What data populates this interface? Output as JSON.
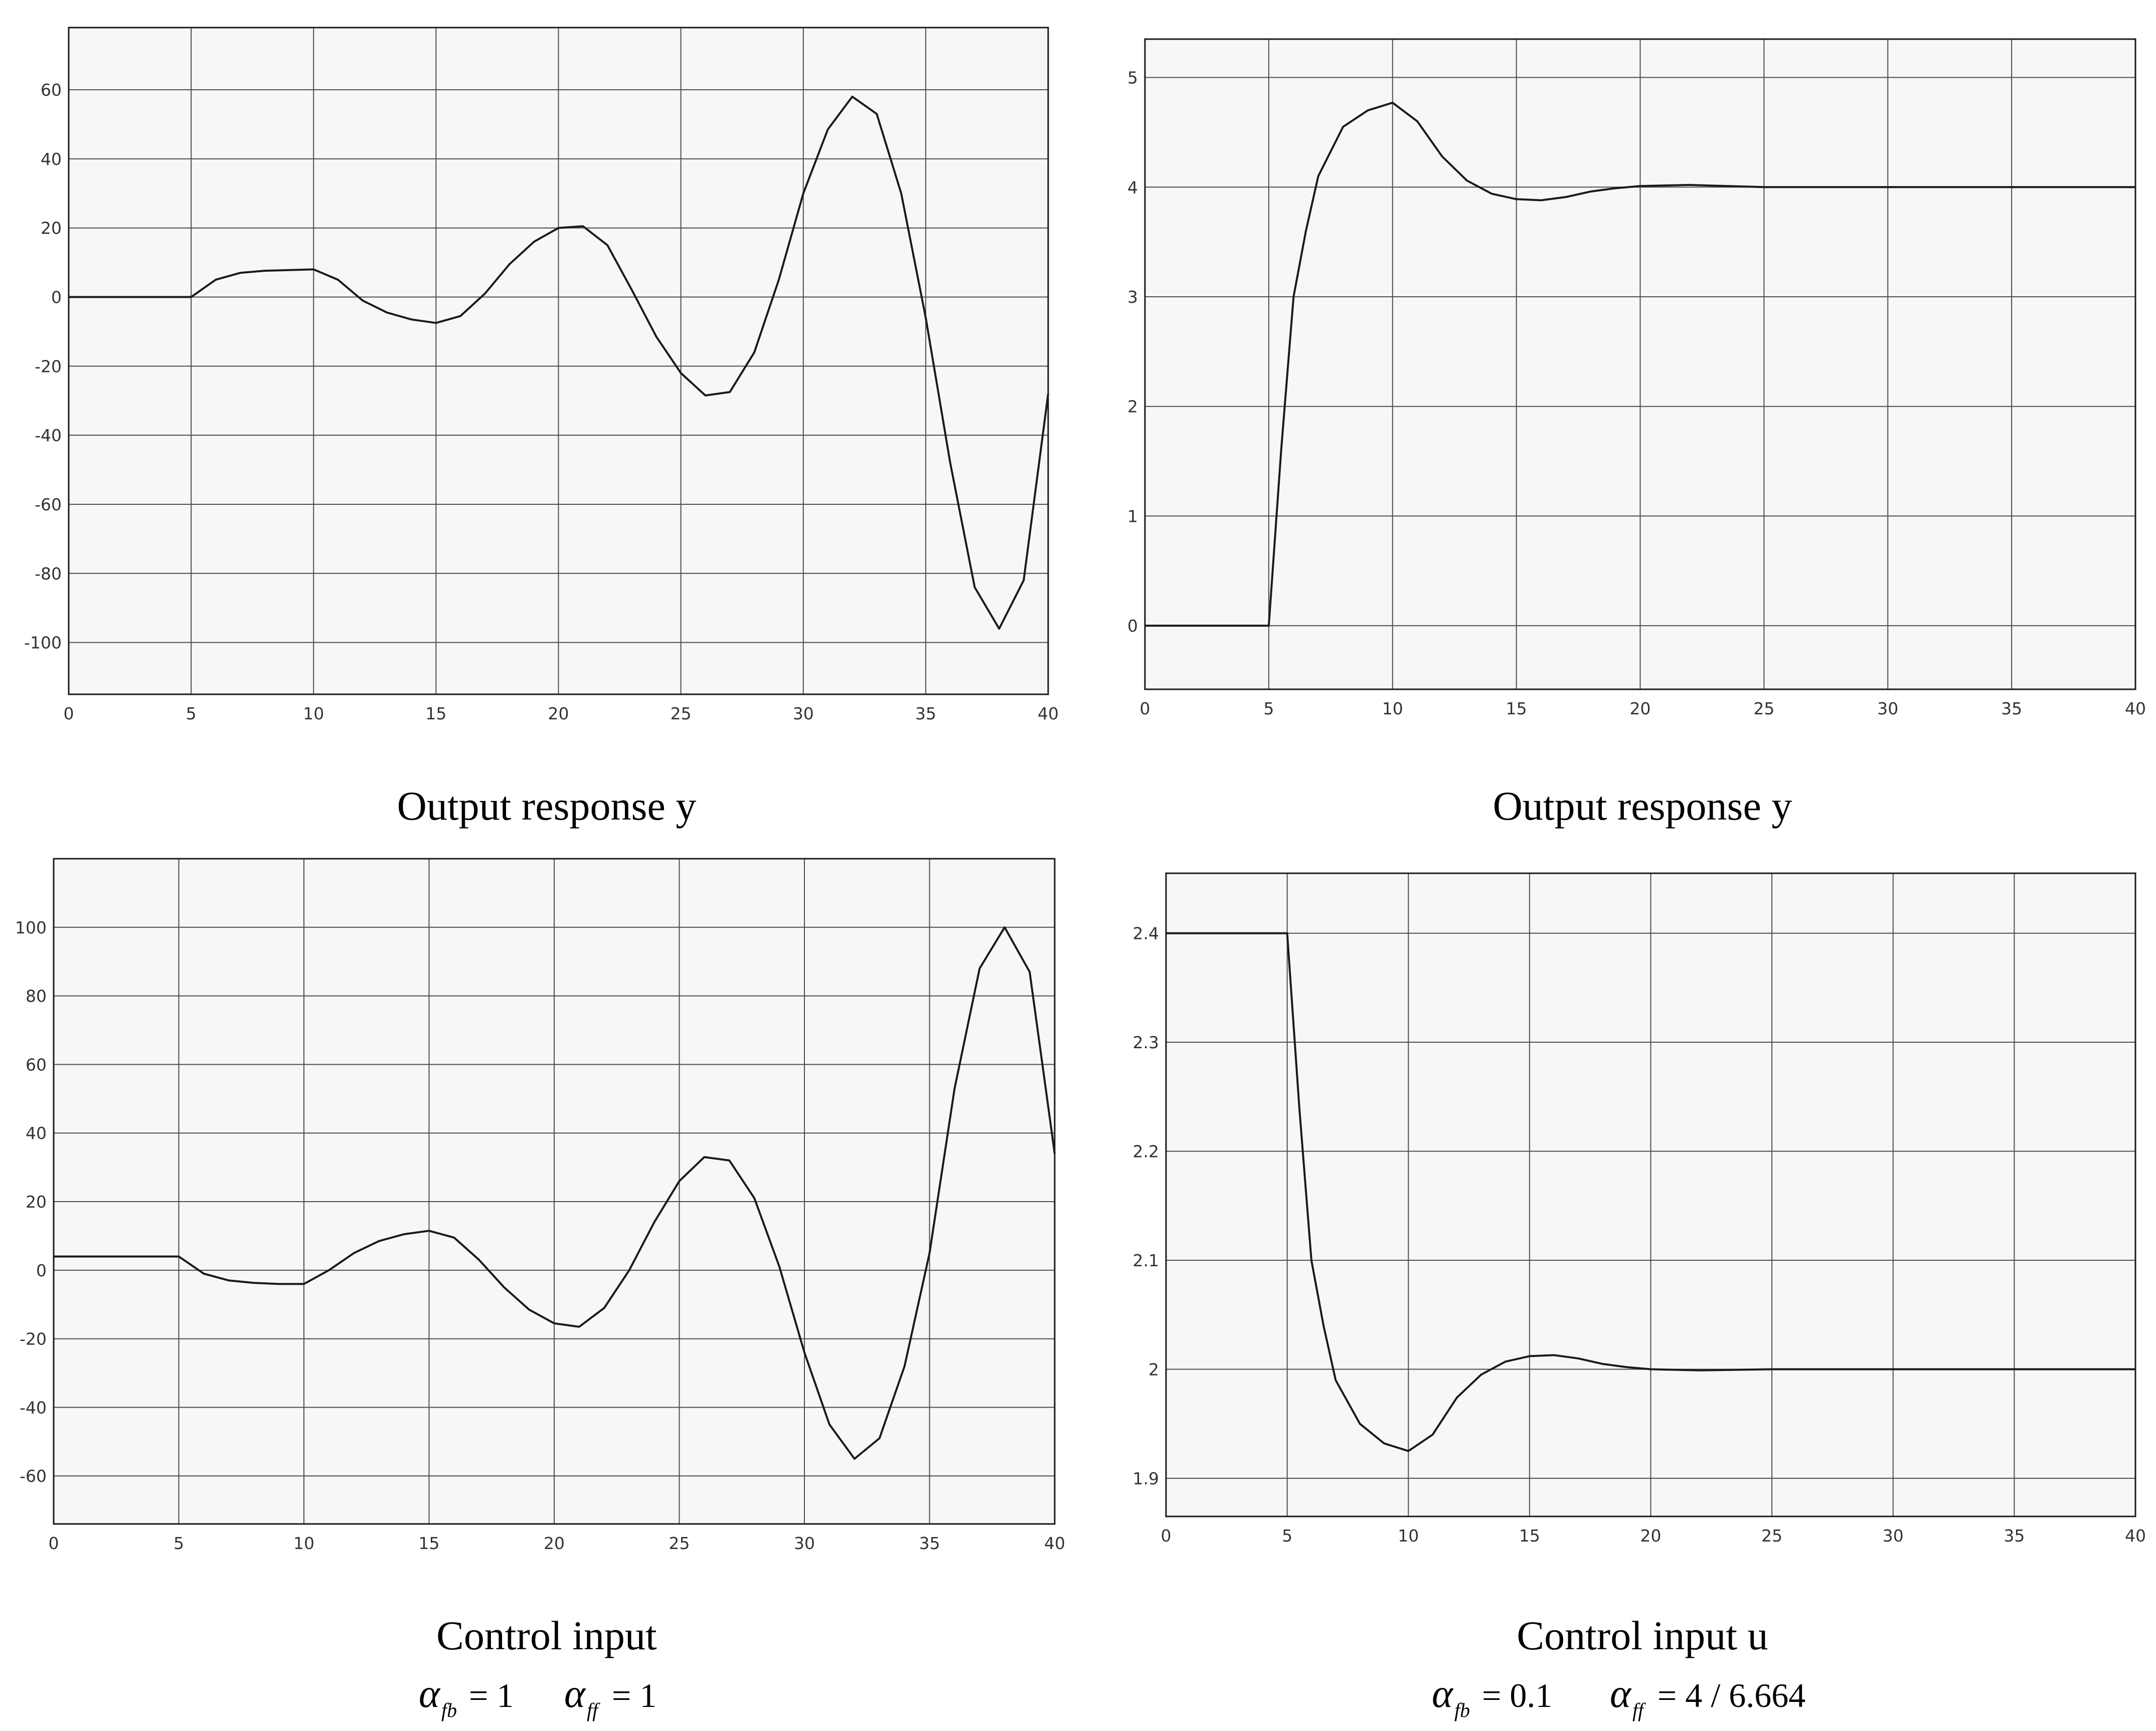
{
  "colors": {
    "background": "#ffffff",
    "plot_background": "#f7f7f7",
    "grid": "#4d4d4d",
    "line": "#1a1a1a",
    "axis_text": "#333333"
  },
  "chart_data": [
    {
      "type": "line",
      "caption": "Output response y",
      "xlim": [
        0,
        40
      ],
      "ylim": [
        -115,
        78
      ],
      "xticks": [
        0,
        5,
        10,
        15,
        20,
        25,
        30,
        35,
        40
      ],
      "yticks": [
        -100,
        -80,
        -60,
        -40,
        -20,
        0,
        20,
        40,
        60
      ],
      "grid": true,
      "series": [
        {
          "x": [
            0,
            5,
            6,
            7,
            8,
            9,
            10,
            11,
            12,
            13,
            14,
            15,
            16,
            17,
            18,
            19,
            20,
            21,
            22,
            23,
            24,
            25,
            26,
            27,
            28,
            29,
            30,
            31,
            32,
            33,
            34,
            35,
            36,
            37,
            38,
            39,
            40
          ],
          "y": [
            0,
            0,
            5,
            7,
            7.6,
            7.8,
            8,
            5,
            -1,
            -4.5,
            -6.5,
            -7.5,
            -5.5,
            1,
            9.5,
            16,
            20,
            20.5,
            15,
            2,
            -11.5,
            -22,
            -28.5,
            -27.5,
            -16,
            5,
            30,
            48.5,
            58,
            53,
            30,
            -6,
            -48,
            -84,
            -96,
            -82,
            -28
          ]
        }
      ]
    },
    {
      "type": "line",
      "caption": "Output response y",
      "xlim": [
        0,
        40
      ],
      "ylim": [
        -0.58,
        5.35
      ],
      "xticks": [
        0,
        5,
        10,
        15,
        20,
        25,
        30,
        35,
        40
      ],
      "yticks": [
        0,
        1,
        2,
        3,
        4,
        5
      ],
      "grid": true,
      "series": [
        {
          "x": [
            0,
            5,
            5.5,
            6,
            6.5,
            7,
            8,
            9,
            10,
            11,
            12,
            13,
            14,
            15,
            16,
            17,
            18,
            19,
            20,
            22,
            25,
            30,
            35,
            40
          ],
          "y": [
            0,
            0,
            1.6,
            3.0,
            3.6,
            4.1,
            4.55,
            4.7,
            4.77,
            4.6,
            4.28,
            4.06,
            3.94,
            3.89,
            3.88,
            3.91,
            3.96,
            3.99,
            4.01,
            4.02,
            4.0,
            4.0,
            4.0,
            4.0
          ]
        }
      ]
    },
    {
      "type": "line",
      "caption": "Control input",
      "alpha_fb": "= 1",
      "alpha_ff": "= 1",
      "xlim": [
        0,
        40
      ],
      "ylim": [
        -74,
        120
      ],
      "xticks": [
        0,
        5,
        10,
        15,
        20,
        25,
        30,
        35,
        40
      ],
      "yticks": [
        -60,
        -40,
        -20,
        0,
        20,
        40,
        60,
        80,
        100
      ],
      "grid": true,
      "series": [
        {
          "x": [
            0,
            5,
            6,
            7,
            8,
            9,
            10,
            11,
            12,
            13,
            14,
            15,
            16,
            17,
            18,
            19,
            20,
            21,
            22,
            23,
            24,
            25,
            26,
            27,
            28,
            29,
            30,
            31,
            32,
            33,
            34,
            35,
            36,
            37,
            38,
            39,
            40
          ],
          "y": [
            4,
            4,
            -1,
            -3,
            -3.7,
            -4,
            -4,
            0,
            5,
            8.5,
            10.5,
            11.5,
            9.5,
            3,
            -5,
            -11.5,
            -15.5,
            -16.5,
            -11,
            0,
            14,
            26,
            33,
            32,
            21,
            1,
            -24,
            -45,
            -55,
            -49,
            -28,
            5,
            53,
            88,
            100,
            87,
            34
          ]
        }
      ]
    },
    {
      "type": "line",
      "caption": "Control input u",
      "alpha_fb": "= 0.1",
      "alpha_ff": "= 4 / 6.664",
      "xlim": [
        0,
        40
      ],
      "ylim": [
        1.865,
        2.455
      ],
      "xticks": [
        0,
        5,
        10,
        15,
        20,
        25,
        30,
        35,
        40
      ],
      "yticks": [
        1.9,
        2,
        2.1,
        2.2,
        2.3,
        2.4
      ],
      "grid": true,
      "series": [
        {
          "x": [
            0,
            5,
            5.5,
            6,
            6.5,
            7,
            8,
            9,
            10,
            11,
            12,
            13,
            14,
            15,
            16,
            17,
            18,
            19,
            20,
            22,
            25,
            30,
            35,
            40
          ],
          "y": [
            2.4,
            2.4,
            2.24,
            2.1,
            2.04,
            1.99,
            1.95,
            1.932,
            1.925,
            1.94,
            1.974,
            1.995,
            2.007,
            2.012,
            2.013,
            2.01,
            2.005,
            2.002,
            2.0,
            1.999,
            2.0,
            2.0,
            2.0,
            2.0
          ]
        }
      ]
    }
  ]
}
